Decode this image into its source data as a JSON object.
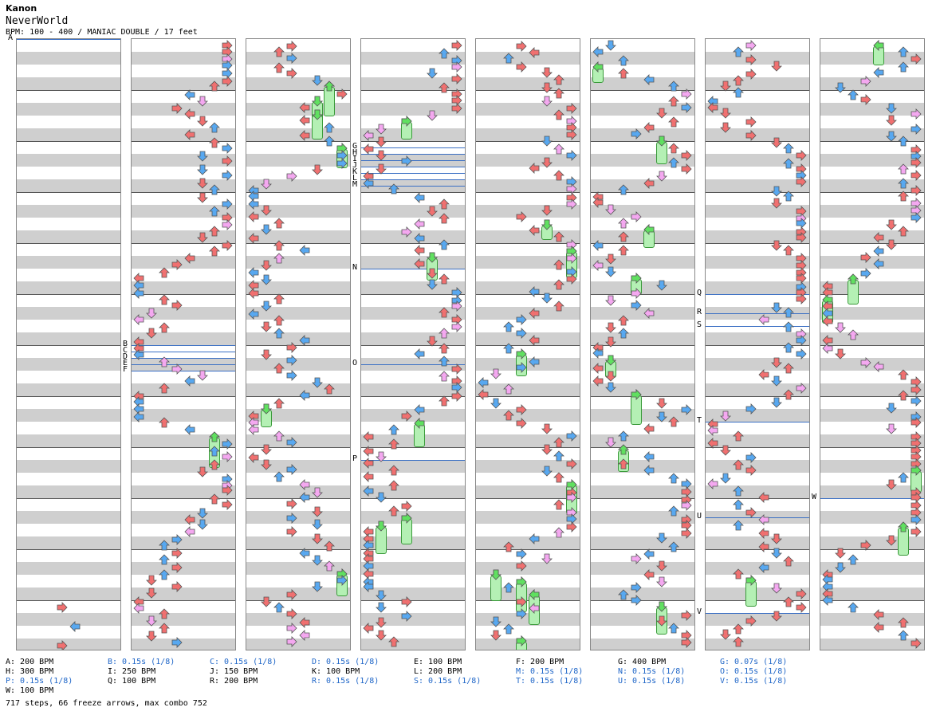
{
  "header": {
    "artist": "Kanon",
    "title": "NeverWorld",
    "meta": "BPM: 100 - 400 / MANIAC DOUBLE / 17 feet"
  },
  "colors": {
    "red": "#f07070",
    "blue": "#58a8f0",
    "pink": "#f4a8f0",
    "green": "#60e060",
    "marker": "#3a6fc4",
    "stripe": "#cfcfcf"
  },
  "markers": [
    {
      "label": "A",
      "column": 0,
      "beat": 0
    },
    {
      "label": "B",
      "column": 1,
      "beat": 24
    },
    {
      "label": "C",
      "column": 1,
      "beat": 24.5
    },
    {
      "label": "D",
      "column": 1,
      "beat": 25
    },
    {
      "label": "E",
      "column": 1,
      "beat": 25.5
    },
    {
      "label": "F",
      "column": 1,
      "beat": 26
    },
    {
      "label": "G",
      "column": 3,
      "beat": 8.5
    },
    {
      "label": "H",
      "column": 3,
      "beat": 9
    },
    {
      "label": "I",
      "column": 3,
      "beat": 9.5
    },
    {
      "label": "J",
      "column": 3,
      "beat": 10
    },
    {
      "label": "K",
      "column": 3,
      "beat": 10.5
    },
    {
      "label": "L",
      "column": 3,
      "beat": 11
    },
    {
      "label": "M",
      "column": 3,
      "beat": 11.5
    },
    {
      "label": "N",
      "column": 3,
      "beat": 18
    },
    {
      "label": "O",
      "column": 3,
      "beat": 25.5
    },
    {
      "label": "P",
      "column": 3,
      "beat": 33
    },
    {
      "label": "Q",
      "column": 6,
      "beat": 20
    },
    {
      "label": "R",
      "column": 6,
      "beat": 21.5
    },
    {
      "label": "S",
      "column": 6,
      "beat": 22.5
    },
    {
      "label": "T",
      "column": 6,
      "beat": 30
    },
    {
      "label": "U",
      "column": 6,
      "beat": 37.5
    },
    {
      "label": "V",
      "column": 6,
      "beat": 45
    },
    {
      "label": "W",
      "column": 7,
      "beat": 36
    }
  ],
  "legend": [
    {
      "text": "A: 200 BPM",
      "kind": "bpm"
    },
    {
      "text": "B: 0.15s (1/8)",
      "kind": "stop"
    },
    {
      "text": "C: 0.15s (1/8)",
      "kind": "stop"
    },
    {
      "text": "D: 0.15s (1/8)",
      "kind": "stop"
    },
    {
      "text": "E: 100 BPM",
      "kind": "bpm"
    },
    {
      "text": "F: 200 BPM",
      "kind": "bpm"
    },
    {
      "text": "G: 400 BPM",
      "kind": "bpm"
    },
    {
      "text": "G: 0.07s (1/8)",
      "kind": "stop"
    },
    {
      "text": "H: 300 BPM",
      "kind": "bpm"
    },
    {
      "text": "I: 250 BPM",
      "kind": "bpm"
    },
    {
      "text": "J: 150 BPM",
      "kind": "bpm"
    },
    {
      "text": "K: 100 BPM",
      "kind": "bpm"
    },
    {
      "text": "L: 200 BPM",
      "kind": "bpm"
    },
    {
      "text": "M: 0.15s (1/8)",
      "kind": "stop"
    },
    {
      "text": "N: 0.15s (1/8)",
      "kind": "stop"
    },
    {
      "text": "O: 0.15s (1/8)",
      "kind": "stop"
    },
    {
      "text": "P: 0.15s (1/8)",
      "kind": "stop"
    },
    {
      "text": "Q: 100 BPM",
      "kind": "bpm"
    },
    {
      "text": "R: 200 BPM",
      "kind": "bpm"
    },
    {
      "text": "R: 0.15s (1/8)",
      "kind": "stop"
    },
    {
      "text": "S: 0.15s (1/8)",
      "kind": "stop"
    },
    {
      "text": "T: 0.15s (1/8)",
      "kind": "stop"
    },
    {
      "text": "U: 0.15s (1/8)",
      "kind": "stop"
    },
    {
      "text": "V: 0.15s (1/8)",
      "kind": "stop"
    },
    {
      "text": "W: 100 BPM",
      "kind": "bpm"
    }
  ],
  "stats": "717 steps, 66 freeze arrows, max combo 752"
}
